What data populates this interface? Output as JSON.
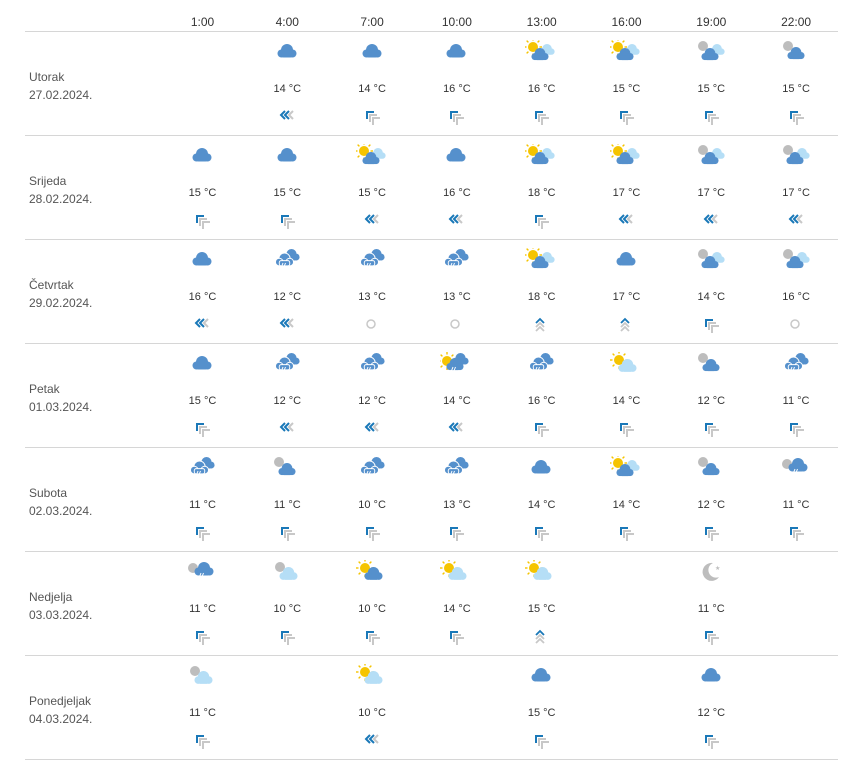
{
  "columns": [
    "1:00",
    "4:00",
    "7:00",
    "10:00",
    "13:00",
    "16:00",
    "19:00",
    "22:00"
  ],
  "colors": {
    "cloud_dark": "#5590cc",
    "cloud_light": "#b5def6",
    "sun": "#f5c400",
    "moon": "#bdbdbd",
    "wind_strong": "#1a78b8",
    "wind_weak": "#c8c8c8",
    "divider": "#d6d6d6"
  },
  "days": [
    {
      "name": "Utorak",
      "date": "27.02.2024.",
      "cells": [
        null,
        {
          "icon": "cloud",
          "temp": "14 °C",
          "wind": "left"
        },
        {
          "icon": "cloud",
          "temp": "14 °C",
          "wind": "nw"
        },
        {
          "icon": "cloud",
          "temp": "16 °C",
          "wind": "nw"
        },
        {
          "icon": "sun-clouds",
          "temp": "16 °C",
          "wind": "nw"
        },
        {
          "icon": "sun-clouds",
          "temp": "15 °C",
          "wind": "nw"
        },
        {
          "icon": "moon-clouds",
          "temp": "15 °C",
          "wind": "nw"
        },
        {
          "icon": "moon-cloud",
          "temp": "15 °C",
          "wind": "nw"
        }
      ]
    },
    {
      "name": "Srijeda",
      "date": "28.02.2024.",
      "cells": [
        {
          "icon": "cloud",
          "temp": "15 °C",
          "wind": "nw"
        },
        {
          "icon": "cloud",
          "temp": "15 °C",
          "wind": "nw"
        },
        {
          "icon": "sun-clouds",
          "temp": "15 °C",
          "wind": "left"
        },
        {
          "icon": "cloud",
          "temp": "16 °C",
          "wind": "left"
        },
        {
          "icon": "sun-clouds",
          "temp": "18 °C",
          "wind": "nw"
        },
        {
          "icon": "sun-clouds",
          "temp": "17 °C",
          "wind": "left"
        },
        {
          "icon": "moon-clouds",
          "temp": "17 °C",
          "wind": "left"
        },
        {
          "icon": "moon-clouds",
          "temp": "17 °C",
          "wind": "left"
        }
      ]
    },
    {
      "name": "Četvrtak",
      "date": "29.02.2024.",
      "cells": [
        {
          "icon": "cloud",
          "temp": "16 °C",
          "wind": "left"
        },
        {
          "icon": "rain",
          "temp": "12 °C",
          "wind": "left"
        },
        {
          "icon": "rain",
          "temp": "13 °C",
          "wind": "calm"
        },
        {
          "icon": "rain",
          "temp": "13 °C",
          "wind": "calm"
        },
        {
          "icon": "sun-clouds",
          "temp": "18 °C",
          "wind": "up"
        },
        {
          "icon": "cloud",
          "temp": "17 °C",
          "wind": "up"
        },
        {
          "icon": "moon-clouds",
          "temp": "14 °C",
          "wind": "nw"
        },
        {
          "icon": "moon-clouds",
          "temp": "16 °C",
          "wind": "calm"
        }
      ]
    },
    {
      "name": "Petak",
      "date": "01.03.2024.",
      "cells": [
        {
          "icon": "cloud",
          "temp": "15 °C",
          "wind": "nw"
        },
        {
          "icon": "rain",
          "temp": "12 °C",
          "wind": "left"
        },
        {
          "icon": "rain",
          "temp": "12 °C",
          "wind": "left"
        },
        {
          "icon": "sun-rain",
          "temp": "14 °C",
          "wind": "left"
        },
        {
          "icon": "rain",
          "temp": "16 °C",
          "wind": "nw"
        },
        {
          "icon": "sun-lightcloud",
          "temp": "14 °C",
          "wind": "nw"
        },
        {
          "icon": "moon-cloud",
          "temp": "12 °C",
          "wind": "nw"
        },
        {
          "icon": "rain",
          "temp": "11 °C",
          "wind": "nw"
        }
      ]
    },
    {
      "name": "Subota",
      "date": "02.03.2024.",
      "cells": [
        {
          "icon": "rain",
          "temp": "11 °C",
          "wind": "nw"
        },
        {
          "icon": "moon-cloud",
          "temp": "11 °C",
          "wind": "nw"
        },
        {
          "icon": "rain",
          "temp": "10 °C",
          "wind": "nw"
        },
        {
          "icon": "rain",
          "temp": "13 °C",
          "wind": "nw"
        },
        {
          "icon": "cloud",
          "temp": "14 °C",
          "wind": "nw"
        },
        {
          "icon": "sun-clouds",
          "temp": "14 °C",
          "wind": "nw"
        },
        {
          "icon": "moon-cloud",
          "temp": "12 °C",
          "wind": "nw"
        },
        {
          "icon": "moon-rain",
          "temp": "11 °C",
          "wind": "nw"
        }
      ]
    },
    {
      "name": "Nedjelja",
      "date": "03.03.2024.",
      "cells": [
        {
          "icon": "moon-rain",
          "temp": "11 °C",
          "wind": "nw"
        },
        {
          "icon": "moon-lightcloud",
          "temp": "10 °C",
          "wind": "nw"
        },
        {
          "icon": "sun-cloud",
          "temp": "10 °C",
          "wind": "nw"
        },
        {
          "icon": "sun-lightcloud",
          "temp": "14 °C",
          "wind": "nw"
        },
        {
          "icon": "sun-lightcloud",
          "temp": "15 °C",
          "wind": "up"
        },
        null,
        {
          "icon": "moon-clear",
          "temp": "11 °C",
          "wind": "nw"
        },
        null
      ]
    },
    {
      "name": "Ponedjeljak",
      "date": "04.03.2024.",
      "cells": [
        {
          "icon": "moon-lightcloud",
          "temp": "11 °C",
          "wind": "nw"
        },
        null,
        {
          "icon": "sun-lightcloud",
          "temp": "10 °C",
          "wind": "left"
        },
        null,
        {
          "icon": "cloud",
          "temp": "15 °C",
          "wind": "nw"
        },
        null,
        {
          "icon": "cloud",
          "temp": "12 °C",
          "wind": "nw"
        },
        null
      ]
    }
  ]
}
